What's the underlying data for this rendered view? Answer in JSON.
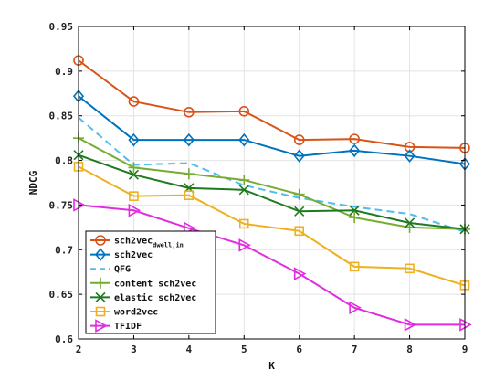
{
  "chart_data": {
    "type": "line",
    "title": "",
    "xlabel": "K",
    "ylabel": "NDCG",
    "x": [
      2,
      3,
      4,
      5,
      6,
      7,
      8,
      9
    ],
    "xlim": [
      2,
      9
    ],
    "ylim": [
      0.6,
      0.95
    ],
    "xticks": [
      "2",
      "3",
      "4",
      "5",
      "6",
      "7",
      "8",
      "9"
    ],
    "yticks": [
      "0.6",
      "0.65",
      "0.7",
      "0.75",
      "0.8",
      "0.85",
      "0.9",
      "0.95"
    ],
    "grid": true,
    "legend_position": "bottom-left",
    "series": [
      {
        "name": "sch2vec",
        "subscript": "dwell,in",
        "color": "#d95319",
        "marker": "circle",
        "dash": "solid",
        "values": [
          0.912,
          0.866,
          0.854,
          0.855,
          0.823,
          0.824,
          0.815,
          0.814
        ]
      },
      {
        "name": "sch2vec",
        "color": "#0072bd",
        "marker": "diamond",
        "dash": "solid",
        "values": [
          0.872,
          0.823,
          0.823,
          0.823,
          0.805,
          0.811,
          0.805,
          0.796
        ]
      },
      {
        "name": "QFG",
        "color": "#4dbeee",
        "marker": "none",
        "dash": "dashed",
        "values": [
          0.848,
          0.795,
          0.797,
          0.772,
          0.758,
          0.748,
          0.74,
          0.72
        ]
      },
      {
        "name": "content sch2vec",
        "color": "#77ac30",
        "marker": "plus",
        "dash": "solid",
        "values": [
          0.825,
          0.792,
          0.785,
          0.778,
          0.762,
          0.736,
          0.725,
          0.723
        ]
      },
      {
        "name": "elastic sch2vec",
        "color": "#1f7a1f",
        "marker": "x",
        "dash": "solid",
        "values": [
          0.806,
          0.784,
          0.769,
          0.767,
          0.743,
          0.744,
          0.73,
          0.723
        ]
      },
      {
        "name": "word2vec",
        "color": "#edb120",
        "marker": "square",
        "dash": "solid",
        "values": [
          0.793,
          0.76,
          0.761,
          0.729,
          0.721,
          0.681,
          0.679,
          0.66
        ]
      },
      {
        "name": "TFIDF",
        "color": "#e02de0",
        "marker": "triangle-right",
        "dash": "solid",
        "values": [
          0.75,
          0.744,
          0.724,
          0.705,
          0.673,
          0.635,
          0.616,
          0.616
        ]
      }
    ]
  }
}
